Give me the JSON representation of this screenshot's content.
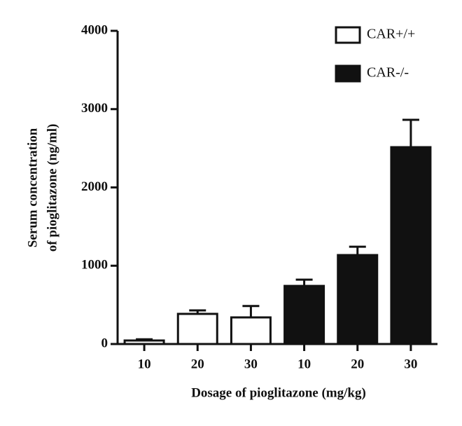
{
  "chart_data": {
    "type": "bar",
    "categories": [
      "10",
      "20",
      "30",
      "10",
      "20",
      "30"
    ],
    "series": [
      {
        "name": "CAR+/+",
        "color": "#ffffff",
        "values": [
          45,
          385,
          340,
          null,
          null,
          null
        ],
        "errors": [
          15,
          45,
          145,
          null,
          null,
          null
        ]
      },
      {
        "name": "CAR-/-",
        "color": "#111111",
        "values": [
          null,
          null,
          null,
          742,
          1136,
          2514
        ],
        "errors": [
          null,
          null,
          null,
          80,
          107,
          350
        ]
      }
    ],
    "xlabel": "Dosage of pioglitazone (mg/kg)",
    "ylabel": [
      "Serum concentration",
      "of pioglitazone (ng/ml)"
    ],
    "ylim": [
      0,
      4000
    ],
    "yticks": [
      0,
      1000,
      2000,
      3000,
      4000
    ],
    "grid": false,
    "legend": "upper right"
  }
}
